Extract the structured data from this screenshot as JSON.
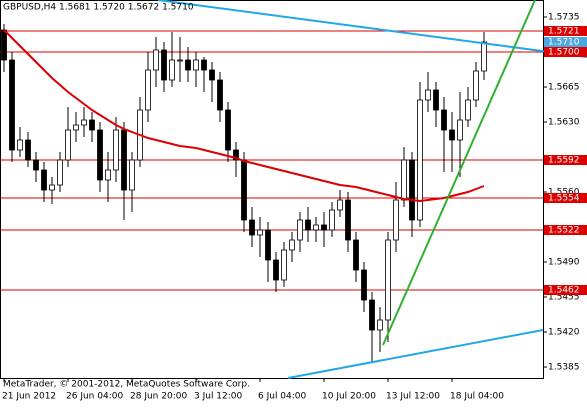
{
  "chart_data": {
    "type": "candlestick",
    "title": "GBPUSD,H4  1.5681 1.5720 1.5672 1.5710",
    "footer": "MetaTrader, © 2001-2012, MetaQuotes Software Corp.",
    "categories": [
      "21 Jun 2012",
      null,
      null,
      null,
      null,
      null,
      null,
      null,
      "26 Jun 04:00",
      null,
      null,
      null,
      null,
      null,
      null,
      null,
      "28 Jun 20:00",
      null,
      null,
      null,
      null,
      null,
      null,
      null,
      "3 Jul 12:00",
      null,
      null,
      null,
      null,
      null,
      null,
      null,
      "6 Jul 04:00",
      null,
      null,
      null,
      null,
      null,
      null,
      null,
      "10 Jul 20:00",
      null,
      null,
      null,
      null,
      null,
      null,
      null,
      "13 Jul 12:00",
      null,
      null,
      null,
      null,
      null,
      null,
      null,
      "18 Jul 04:00",
      null,
      null,
      null,
      null
    ],
    "open": [
      1.5722,
      1.5692,
      1.5602,
      1.5612,
      1.5592,
      1.5582,
      1.5562,
      1.5567,
      1.5592,
      1.5622,
      1.5627,
      1.5632,
      1.5622,
      1.5572,
      1.5582,
      1.5622,
      1.5562,
      1.5592,
      1.5642,
      1.5682,
      1.5702,
      1.5672,
      1.5692,
      1.5692,
      1.5682,
      1.5692,
      1.5682,
      1.5672,
      1.5642,
      1.5602,
      1.5592,
      1.5532,
      1.5517,
      1.5522,
      1.5492,
      1.5472,
      1.5502,
      1.5512,
      1.5532,
      1.5522,
      1.5527,
      1.5522,
      1.5542,
      1.5552,
      1.5512,
      1.5482,
      1.5452,
      1.5422,
      1.5432,
      1.5512,
      1.5552,
      1.5592,
      1.5532,
      1.5652,
      1.5662,
      1.5642,
      1.5622,
      1.5612,
      1.5632,
      1.5652,
      1.5681
    ],
    "high": [
      1.5728,
      1.57,
      1.5625,
      1.562,
      1.56,
      1.559,
      1.5575,
      1.56,
      1.5645,
      1.564,
      1.5645,
      1.564,
      1.563,
      1.56,
      1.5635,
      1.563,
      1.56,
      1.5655,
      1.57,
      1.5715,
      1.571,
      1.572,
      1.5715,
      1.5705,
      1.57,
      1.5695,
      1.569,
      1.568,
      1.565,
      1.561,
      1.56,
      1.5545,
      1.5535,
      1.553,
      1.55,
      1.551,
      1.552,
      1.554,
      1.5545,
      1.5535,
      1.554,
      1.555,
      1.5562,
      1.556,
      1.552,
      1.549,
      1.546,
      1.5445,
      1.552,
      1.557,
      1.5605,
      1.56,
      1.567,
      1.568,
      1.567,
      1.5655,
      1.564,
      1.566,
      1.5665,
      1.569,
      1.572
    ],
    "low": [
      1.568,
      1.559,
      1.5595,
      1.5585,
      1.557,
      1.555,
      1.5548,
      1.556,
      1.5585,
      1.561,
      1.5615,
      1.561,
      1.556,
      1.555,
      1.557,
      1.5532,
      1.554,
      1.5585,
      1.563,
      1.5665,
      1.566,
      1.5665,
      1.567,
      1.567,
      1.5665,
      1.566,
      1.565,
      1.563,
      1.559,
      1.5575,
      1.552,
      1.5505,
      1.5495,
      1.547,
      1.546,
      1.5465,
      1.549,
      1.55,
      1.551,
      1.551,
      1.5505,
      1.5515,
      1.5535,
      1.55,
      1.547,
      1.544,
      1.539,
      1.54,
      1.541,
      1.55,
      1.5545,
      1.5515,
      1.5525,
      1.564,
      1.5625,
      1.558,
      1.558,
      1.5575,
      1.5625,
      1.5645,
      1.5672
    ],
    "close": [
      1.5692,
      1.5602,
      1.5612,
      1.5592,
      1.5582,
      1.5562,
      1.5567,
      1.5592,
      1.5622,
      1.5627,
      1.5632,
      1.5622,
      1.5572,
      1.5582,
      1.5622,
      1.5562,
      1.5592,
      1.5642,
      1.5682,
      1.5702,
      1.5672,
      1.5692,
      1.5692,
      1.5682,
      1.5692,
      1.5682,
      1.5672,
      1.5642,
      1.5602,
      1.5592,
      1.5532,
      1.5517,
      1.5522,
      1.5492,
      1.5472,
      1.5502,
      1.5512,
      1.5532,
      1.5522,
      1.5527,
      1.5522,
      1.5542,
      1.5552,
      1.5512,
      1.5482,
      1.5452,
      1.5422,
      1.5432,
      1.5512,
      1.5552,
      1.5592,
      1.5532,
      1.5652,
      1.5662,
      1.5642,
      1.5622,
      1.5612,
      1.5632,
      1.5652,
      1.5681,
      1.571
    ],
    "moving_average": {
      "color": "#dd0000",
      "values": [
        1.5722,
        1.5714,
        1.5706,
        1.5698,
        1.569,
        1.5682,
        1.5674,
        1.5667,
        1.566,
        1.5654,
        1.5648,
        1.5642,
        1.5637,
        1.5632,
        1.5627,
        1.5623,
        1.562,
        1.5617,
        1.5614,
        1.5612,
        1.561,
        1.5608,
        1.5606,
        1.5605,
        1.5604,
        1.5602,
        1.56,
        1.5598,
        1.5596,
        1.5594,
        1.5591,
        1.5589,
        1.5587,
        1.5585,
        1.5583,
        1.5581,
        1.5579,
        1.5577,
        1.5575,
        1.5573,
        1.5571,
        1.5569,
        1.5567,
        1.5566,
        1.5565,
        1.5563,
        1.5561,
        1.5559,
        1.5557,
        1.5555,
        1.5553,
        1.5552,
        1.5551,
        1.5552,
        1.5553,
        1.5554,
        1.5556,
        1.5558,
        1.556,
        1.5563,
        1.5566
      ]
    },
    "levels": [
      {
        "value": 1.5721,
        "label": "1.5721"
      },
      {
        "value": 1.57,
        "label": "1.5700"
      },
      {
        "value": 1.5592,
        "label": "1.5592"
      },
      {
        "value": 1.5554,
        "label": "1.5554"
      },
      {
        "value": 1.5522,
        "label": "1.5522"
      },
      {
        "value": 1.5462,
        "label": "1.5462"
      }
    ],
    "level_color": "#dd0000",
    "price_label": {
      "value": 1.571,
      "label": "1.5710"
    },
    "ylim": [
      1.5374,
      1.5752
    ],
    "yticks": [
      1.5735,
      1.5665,
      {
        "value": 1.563,
        "label": "1.5630"
      },
      {
        "value": 1.556,
        "label": "1.5560"
      },
      {
        "value": 1.549,
        "label": "1.5490"
      },
      1.5455,
      {
        "value": 1.542,
        "label": "1.5420"
      },
      1.5385
    ]
  }
}
